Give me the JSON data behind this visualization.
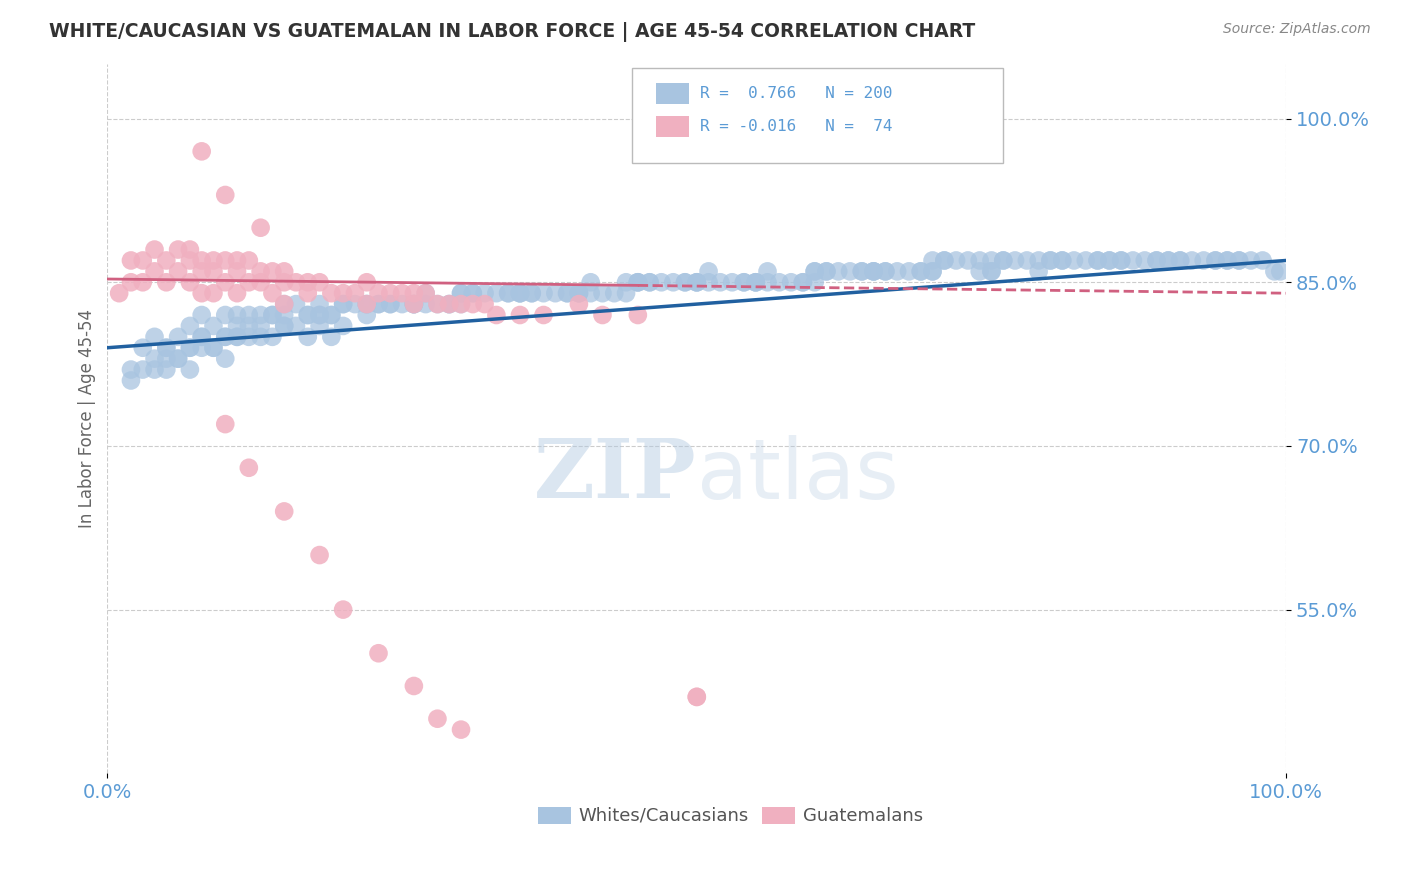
{
  "title": "WHITE/CAUCASIAN VS GUATEMALAN IN LABOR FORCE | AGE 45-54 CORRELATION CHART",
  "source_text": "Source: ZipAtlas.com",
  "ylabel": "In Labor Force | Age 45-54",
  "watermark_zip": "ZIP",
  "watermark_atlas": "atlas",
  "legend_r_blue": "0.766",
  "legend_n_blue": "200",
  "legend_r_pink": "-0.016",
  "legend_n_pink": "74",
  "legend_label_blue": "Whites/Caucasians",
  "legend_label_pink": "Guatemalans",
  "xmin": 0.0,
  "xmax": 1.0,
  "ymin": 0.4,
  "ymax": 1.05,
  "yticks": [
    0.55,
    0.7,
    0.85,
    1.0
  ],
  "ytick_labels": [
    "55.0%",
    "70.0%",
    "85.0%",
    "100.0%"
  ],
  "blue_color": "#a8c4e0",
  "blue_line_color": "#2060a0",
  "pink_color": "#f0b0c0",
  "pink_line_color": "#d06080",
  "title_color": "#333333",
  "axis_color": "#5b9bd5",
  "grid_color": "#cccccc",
  "background_color": "#ffffff",
  "blue_scatter_x": [
    0.02,
    0.03,
    0.04,
    0.04,
    0.05,
    0.05,
    0.06,
    0.06,
    0.07,
    0.07,
    0.07,
    0.08,
    0.08,
    0.09,
    0.09,
    0.1,
    0.1,
    0.1,
    0.11,
    0.11,
    0.12,
    0.12,
    0.13,
    0.13,
    0.14,
    0.14,
    0.15,
    0.15,
    0.16,
    0.16,
    0.17,
    0.17,
    0.18,
    0.18,
    0.19,
    0.19,
    0.2,
    0.2,
    0.21,
    0.22,
    0.23,
    0.24,
    0.25,
    0.26,
    0.27,
    0.28,
    0.29,
    0.3,
    0.31,
    0.32,
    0.33,
    0.34,
    0.35,
    0.36,
    0.37,
    0.38,
    0.39,
    0.4,
    0.41,
    0.42,
    0.43,
    0.44,
    0.45,
    0.46,
    0.47,
    0.48,
    0.49,
    0.5,
    0.51,
    0.52,
    0.53,
    0.54,
    0.55,
    0.56,
    0.57,
    0.58,
    0.59,
    0.6,
    0.61,
    0.62,
    0.63,
    0.64,
    0.65,
    0.66,
    0.67,
    0.68,
    0.69,
    0.7,
    0.71,
    0.72,
    0.73,
    0.74,
    0.75,
    0.76,
    0.77,
    0.78,
    0.79,
    0.8,
    0.81,
    0.82,
    0.83,
    0.84,
    0.85,
    0.86,
    0.87,
    0.88,
    0.89,
    0.9,
    0.91,
    0.92,
    0.93,
    0.94,
    0.95,
    0.96,
    0.97,
    0.98,
    0.99,
    0.995,
    0.04,
    0.06,
    0.08,
    0.1,
    0.12,
    0.14,
    0.17,
    0.2,
    0.23,
    0.27,
    0.31,
    0.36,
    0.41,
    0.46,
    0.51,
    0.56,
    0.61,
    0.66,
    0.71,
    0.76,
    0.81,
    0.86,
    0.91,
    0.96,
    0.03,
    0.07,
    0.11,
    0.15,
    0.19,
    0.24,
    0.29,
    0.34,
    0.39,
    0.44,
    0.49,
    0.54,
    0.59,
    0.64,
    0.69,
    0.74,
    0.79,
    0.84,
    0.89,
    0.94,
    0.05,
    0.09,
    0.13,
    0.18,
    0.22,
    0.26,
    0.3,
    0.35,
    0.4,
    0.45,
    0.5,
    0.55,
    0.6,
    0.65,
    0.7,
    0.75,
    0.8,
    0.85,
    0.9,
    0.95,
    0.02,
    0.05,
    0.08,
    0.11,
    0.15,
    0.18,
    0.22,
    0.26,
    0.3,
    0.35,
    0.4,
    0.45,
    0.5,
    0.55,
    0.6,
    0.65,
    0.7,
    0.75
  ],
  "blue_scatter_y": [
    0.76,
    0.79,
    0.77,
    0.8,
    0.79,
    0.77,
    0.8,
    0.78,
    0.81,
    0.79,
    0.77,
    0.82,
    0.8,
    0.81,
    0.79,
    0.82,
    0.8,
    0.78,
    0.82,
    0.8,
    0.82,
    0.8,
    0.82,
    0.8,
    0.82,
    0.8,
    0.83,
    0.81,
    0.83,
    0.81,
    0.82,
    0.8,
    0.83,
    0.81,
    0.82,
    0.8,
    0.83,
    0.81,
    0.83,
    0.83,
    0.83,
    0.83,
    0.83,
    0.83,
    0.83,
    0.83,
    0.83,
    0.84,
    0.84,
    0.84,
    0.84,
    0.84,
    0.84,
    0.84,
    0.84,
    0.84,
    0.84,
    0.84,
    0.84,
    0.84,
    0.84,
    0.84,
    0.85,
    0.85,
    0.85,
    0.85,
    0.85,
    0.85,
    0.85,
    0.85,
    0.85,
    0.85,
    0.85,
    0.85,
    0.85,
    0.85,
    0.85,
    0.85,
    0.86,
    0.86,
    0.86,
    0.86,
    0.86,
    0.86,
    0.86,
    0.86,
    0.86,
    0.87,
    0.87,
    0.87,
    0.87,
    0.87,
    0.87,
    0.87,
    0.87,
    0.87,
    0.87,
    0.87,
    0.87,
    0.87,
    0.87,
    0.87,
    0.87,
    0.87,
    0.87,
    0.87,
    0.87,
    0.87,
    0.87,
    0.87,
    0.87,
    0.87,
    0.87,
    0.87,
    0.87,
    0.87,
    0.86,
    0.86,
    0.78,
    0.78,
    0.79,
    0.8,
    0.81,
    0.82,
    0.82,
    0.83,
    0.83,
    0.84,
    0.84,
    0.84,
    0.85,
    0.85,
    0.86,
    0.86,
    0.86,
    0.86,
    0.87,
    0.87,
    0.87,
    0.87,
    0.87,
    0.87,
    0.77,
    0.79,
    0.8,
    0.81,
    0.82,
    0.83,
    0.83,
    0.84,
    0.84,
    0.85,
    0.85,
    0.85,
    0.85,
    0.86,
    0.86,
    0.86,
    0.86,
    0.87,
    0.87,
    0.87,
    0.78,
    0.79,
    0.81,
    0.82,
    0.82,
    0.83,
    0.83,
    0.84,
    0.84,
    0.85,
    0.85,
    0.85,
    0.86,
    0.86,
    0.86,
    0.86,
    0.87,
    0.87,
    0.87,
    0.87,
    0.77,
    0.79,
    0.8,
    0.81,
    0.82,
    0.82,
    0.83,
    0.83,
    0.84,
    0.84,
    0.84,
    0.85,
    0.85,
    0.85,
    0.86,
    0.86,
    0.86,
    0.86
  ],
  "pink_scatter_x": [
    0.01,
    0.02,
    0.02,
    0.03,
    0.03,
    0.04,
    0.04,
    0.05,
    0.05,
    0.06,
    0.06,
    0.07,
    0.07,
    0.07,
    0.08,
    0.08,
    0.08,
    0.09,
    0.09,
    0.09,
    0.1,
    0.1,
    0.11,
    0.11,
    0.11,
    0.12,
    0.12,
    0.13,
    0.13,
    0.14,
    0.14,
    0.15,
    0.15,
    0.15,
    0.16,
    0.17,
    0.17,
    0.18,
    0.19,
    0.2,
    0.21,
    0.22,
    0.22,
    0.23,
    0.24,
    0.25,
    0.26,
    0.26,
    0.27,
    0.28,
    0.29,
    0.3,
    0.31,
    0.32,
    0.33,
    0.35,
    0.37,
    0.4,
    0.42,
    0.45,
    0.5,
    0.1,
    0.12,
    0.15,
    0.18,
    0.2,
    0.23,
    0.26,
    0.28,
    0.3,
    0.08,
    0.1,
    0.13,
    0.5
  ],
  "pink_scatter_y": [
    0.84,
    0.87,
    0.85,
    0.87,
    0.85,
    0.88,
    0.86,
    0.87,
    0.85,
    0.88,
    0.86,
    0.88,
    0.87,
    0.85,
    0.87,
    0.86,
    0.84,
    0.87,
    0.86,
    0.84,
    0.87,
    0.85,
    0.87,
    0.86,
    0.84,
    0.87,
    0.85,
    0.86,
    0.85,
    0.86,
    0.84,
    0.86,
    0.85,
    0.83,
    0.85,
    0.85,
    0.84,
    0.85,
    0.84,
    0.84,
    0.84,
    0.85,
    0.83,
    0.84,
    0.84,
    0.84,
    0.84,
    0.83,
    0.84,
    0.83,
    0.83,
    0.83,
    0.83,
    0.83,
    0.82,
    0.82,
    0.82,
    0.83,
    0.82,
    0.82,
    0.47,
    0.72,
    0.68,
    0.64,
    0.6,
    0.55,
    0.51,
    0.48,
    0.45,
    0.44,
    0.97,
    0.93,
    0.9,
    0.47
  ],
  "pink_line_y_start": 0.853,
  "pink_line_y_end": 0.84,
  "blue_line_y_start": 0.79,
  "blue_line_y_end": 0.87
}
